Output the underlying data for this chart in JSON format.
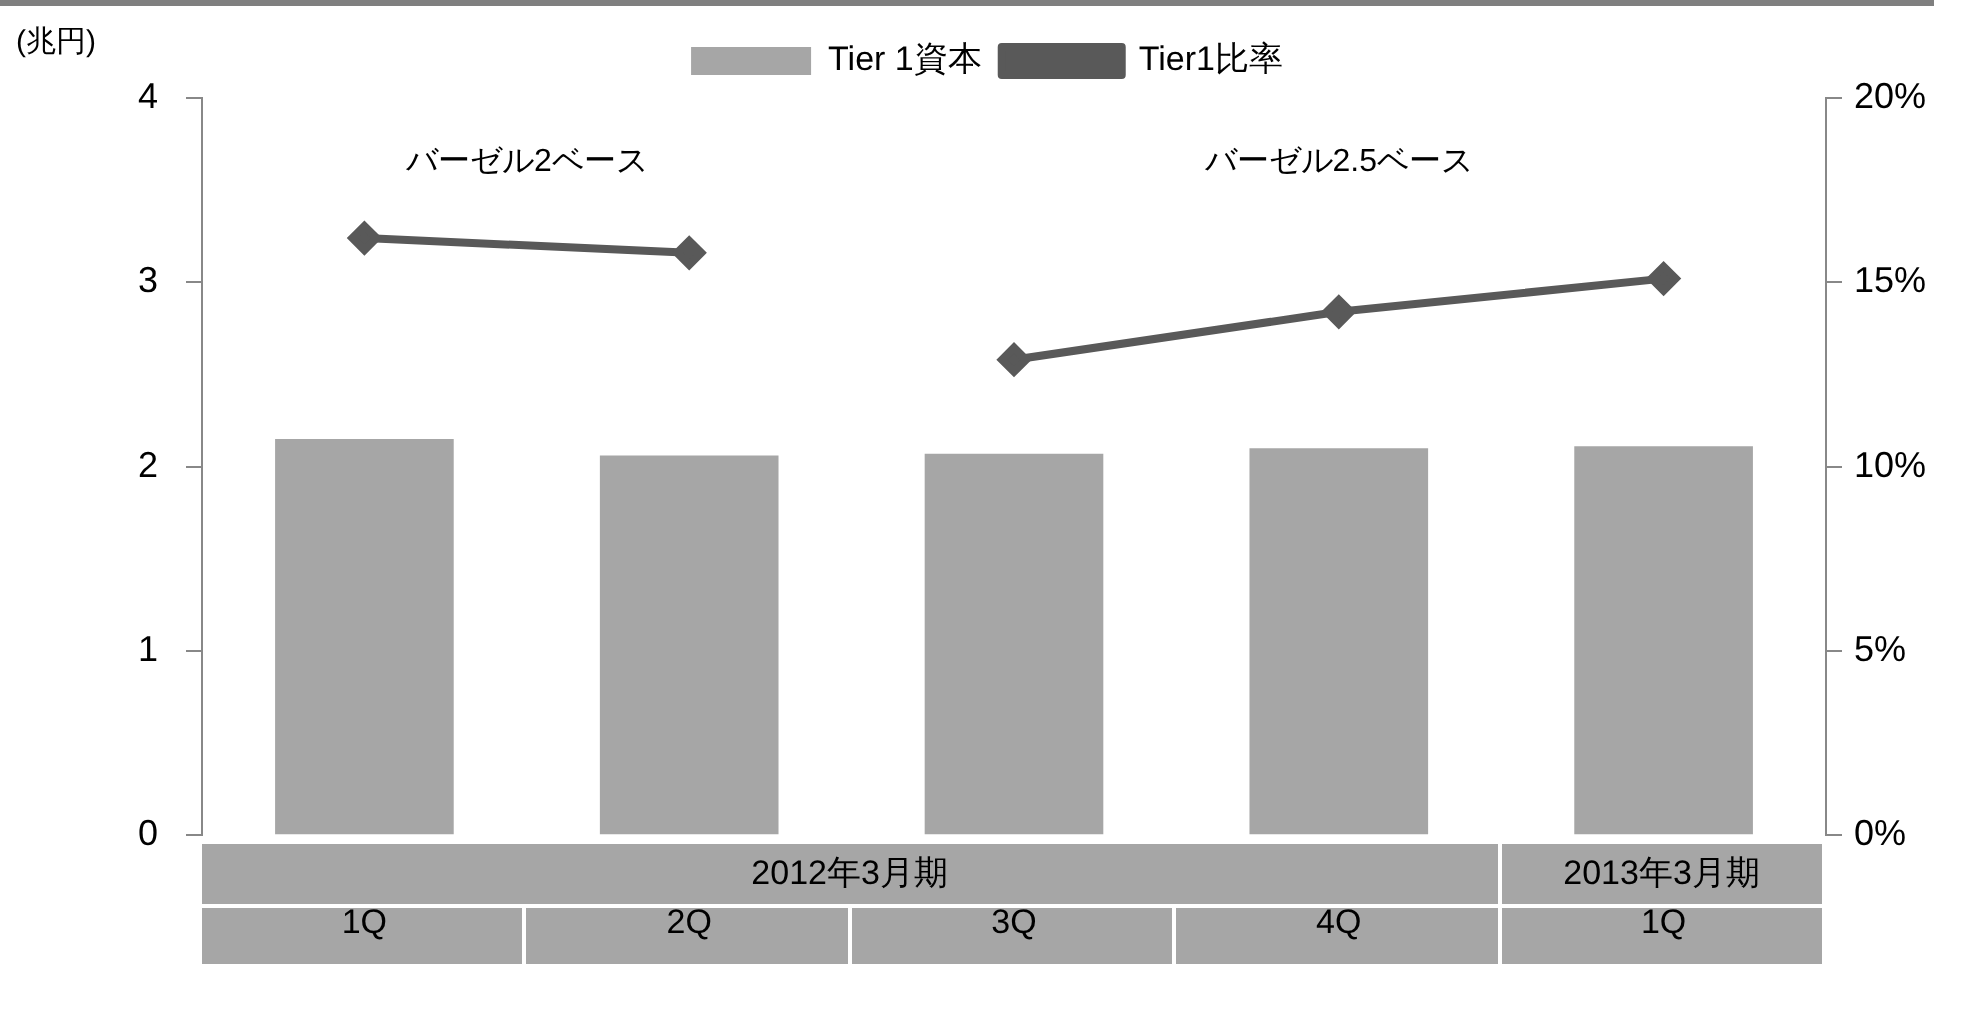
{
  "chart_data": {
    "type": "bar",
    "ylabel": "(兆円)",
    "categories": [
      "1Q",
      "2Q",
      "3Q",
      "4Q",
      "1Q"
    ],
    "series": [
      {
        "name": "Tier 1資本",
        "color": "#a6a6a6",
        "values": [
          2.15,
          2.06,
          2.07,
          2.1,
          2.11
        ]
      },
      {
        "type": "line",
        "name": "Tier1比率",
        "color": "#595959",
        "axis": "y2",
        "values": [
          16.2,
          15.8,
          null,
          null,
          null
        ]
      },
      {
        "type": "line",
        "color": "#595959",
        "axis": "y2",
        "values": [
          null,
          null,
          12.9,
          14.2,
          15.1
        ]
      }
    ],
    "ylim": [
      0,
      4
    ],
    "yticks": [
      0,
      1,
      2,
      3,
      4
    ],
    "y2lim": [
      0,
      20
    ],
    "y2ticks": [
      {
        "value": 0,
        "label": "0%"
      },
      {
        "value": 5,
        "label": "5%"
      },
      {
        "value": 10,
        "label": "10%"
      },
      {
        "value": 15,
        "label": "15%"
      },
      {
        "value": 20,
        "label": "20%"
      }
    ],
    "marker": "diamond",
    "grid": false,
    "legend": "top",
    "annotations": [
      "バーゼル2ベース",
      "バーゼル2.5ベース",
      "2012年3月期",
      "2013年3月期"
    ]
  }
}
